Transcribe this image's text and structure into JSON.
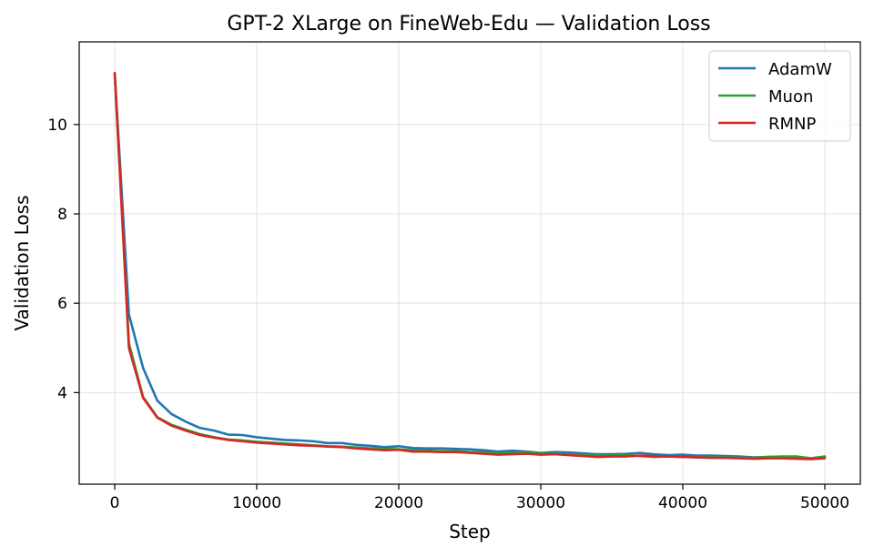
{
  "chart_data": {
    "type": "line",
    "title": "GPT-2 XLarge on FineWeb-Edu — Validation Loss",
    "xlabel": "Step",
    "ylabel": "Validation Loss",
    "xlim": [
      -2500,
      52500
    ],
    "ylim": [
      1.95,
      11.85
    ],
    "xticks": [
      0,
      10000,
      20000,
      30000,
      40000,
      50000
    ],
    "xtick_labels": [
      "0",
      "10000",
      "20000",
      "30000",
      "40000",
      "50000"
    ],
    "yticks": [
      4,
      6,
      8,
      10
    ],
    "ytick_labels": [
      "4",
      "6",
      "8",
      "10"
    ],
    "grid": true,
    "legend_position": "top-right",
    "x": [
      0,
      1000,
      2000,
      3000,
      4000,
      5000,
      6000,
      7000,
      8000,
      9000,
      10000,
      11000,
      12000,
      13000,
      14000,
      15000,
      16000,
      17000,
      18000,
      19000,
      20000,
      21000,
      22000,
      23000,
      24000,
      25000,
      26000,
      27000,
      28000,
      29000,
      30000,
      31000,
      32000,
      33000,
      34000,
      35000,
      36000,
      37000,
      38000,
      39000,
      40000,
      41000,
      42000,
      43000,
      44000,
      45000,
      46000,
      47000,
      48000,
      49000,
      50000
    ],
    "series": [
      {
        "name": "AdamW",
        "color": "#1f77b4",
        "values": [
          11.15,
          5.75,
          4.55,
          3.82,
          3.52,
          3.35,
          3.21,
          3.15,
          3.06,
          3.05,
          3.0,
          2.97,
          2.94,
          2.93,
          2.91,
          2.87,
          2.87,
          2.83,
          2.81,
          2.78,
          2.8,
          2.76,
          2.75,
          2.75,
          2.74,
          2.73,
          2.71,
          2.68,
          2.7,
          2.68,
          2.65,
          2.67,
          2.66,
          2.64,
          2.62,
          2.62,
          2.63,
          2.65,
          2.62,
          2.6,
          2.61,
          2.59,
          2.59,
          2.58,
          2.57,
          2.55,
          2.56,
          2.56,
          2.56,
          2.53,
          2.56
        ]
      },
      {
        "name": "Muon",
        "color": "#2ca02c",
        "values": [
          11.15,
          5.1,
          3.9,
          3.45,
          3.28,
          3.17,
          3.07,
          3.0,
          2.95,
          2.93,
          2.9,
          2.88,
          2.86,
          2.84,
          2.82,
          2.8,
          2.79,
          2.77,
          2.75,
          2.74,
          2.73,
          2.71,
          2.7,
          2.69,
          2.69,
          2.67,
          2.66,
          2.64,
          2.65,
          2.66,
          2.64,
          2.63,
          2.62,
          2.6,
          2.59,
          2.59,
          2.6,
          2.58,
          2.56,
          2.57,
          2.56,
          2.55,
          2.55,
          2.55,
          2.54,
          2.54,
          2.56,
          2.57,
          2.57,
          2.53,
          2.57
        ]
      },
      {
        "name": "RMNP",
        "color": "#d62728",
        "values": [
          11.15,
          5.0,
          3.88,
          3.44,
          3.26,
          3.15,
          3.05,
          2.99,
          2.94,
          2.91,
          2.88,
          2.86,
          2.84,
          2.82,
          2.81,
          2.79,
          2.78,
          2.75,
          2.73,
          2.71,
          2.72,
          2.68,
          2.68,
          2.67,
          2.67,
          2.65,
          2.63,
          2.61,
          2.62,
          2.63,
          2.61,
          2.62,
          2.6,
          2.58,
          2.56,
          2.57,
          2.57,
          2.59,
          2.58,
          2.57,
          2.56,
          2.55,
          2.54,
          2.54,
          2.53,
          2.52,
          2.53,
          2.53,
          2.52,
          2.51,
          2.53
        ]
      }
    ]
  }
}
